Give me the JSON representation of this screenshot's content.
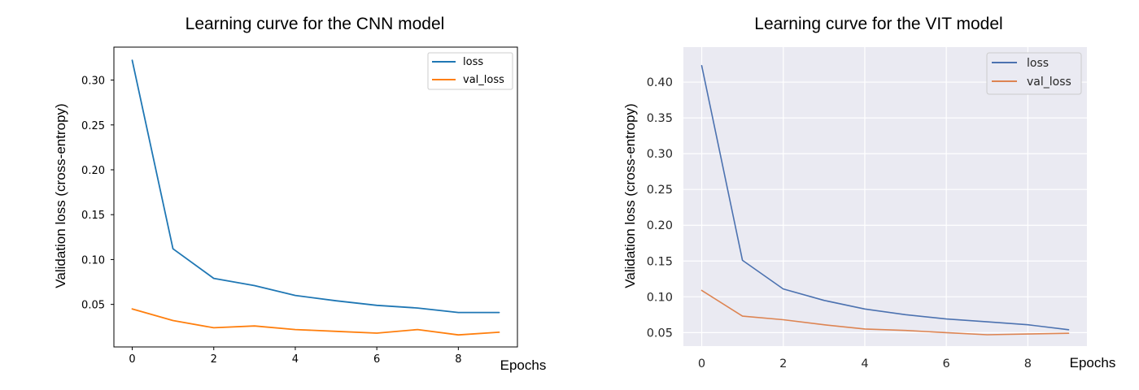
{
  "chart_data": [
    {
      "type": "line",
      "title": "Learning curve for the CNN model",
      "xlabel": "Epochs",
      "ylabel": "Validation loss (cross-entropy)",
      "x": [
        0,
        1,
        2,
        3,
        4,
        5,
        6,
        7,
        8,
        9
      ],
      "xticks": [
        "0",
        "2",
        "4",
        "6",
        "8"
      ],
      "yticks": [
        "0.05",
        "0.10",
        "0.15",
        "0.20",
        "0.25",
        "0.30"
      ],
      "xlim": [
        -0.45,
        9.45
      ],
      "ylim": [
        0.0026,
        0.3367
      ],
      "grid": false,
      "legend_position": "top-right",
      "series": [
        {
          "name": "loss",
          "color": "#1f77b4",
          "values": [
            0.322,
            0.112,
            0.079,
            0.071,
            0.06,
            0.054,
            0.049,
            0.046,
            0.041,
            0.041
          ]
        },
        {
          "name": "val_loss",
          "color": "#ff7f0e",
          "values": [
            0.045,
            0.032,
            0.024,
            0.026,
            0.022,
            0.02,
            0.018,
            0.022,
            0.016,
            0.019
          ]
        }
      ]
    },
    {
      "type": "line",
      "title": "Learning curve for the VIT model",
      "xlabel": "Epochs",
      "ylabel": "Validation loss (cross-entropy)",
      "x": [
        0,
        1,
        2,
        3,
        4,
        5,
        6,
        7,
        8,
        9
      ],
      "xticks": [
        "0",
        "2",
        "4",
        "6",
        "8"
      ],
      "yticks": [
        "0.05",
        "0.10",
        "0.15",
        "0.20",
        "0.25",
        "0.30",
        "0.35",
        "0.40"
      ],
      "xlim": [
        -0.45,
        9.45
      ],
      "ylim": [
        0.0311,
        0.4489
      ],
      "grid": true,
      "legend_position": "top-right",
      "series": [
        {
          "name": "loss",
          "color": "#4c72b0",
          "values": [
            0.423,
            0.151,
            0.111,
            0.095,
            0.083,
            0.075,
            0.069,
            0.065,
            0.061,
            0.054
          ]
        },
        {
          "name": "val_loss",
          "color": "#dd8452",
          "values": [
            0.109,
            0.073,
            0.068,
            0.061,
            0.055,
            0.053,
            0.05,
            0.047,
            0.048,
            0.049
          ]
        }
      ]
    }
  ]
}
